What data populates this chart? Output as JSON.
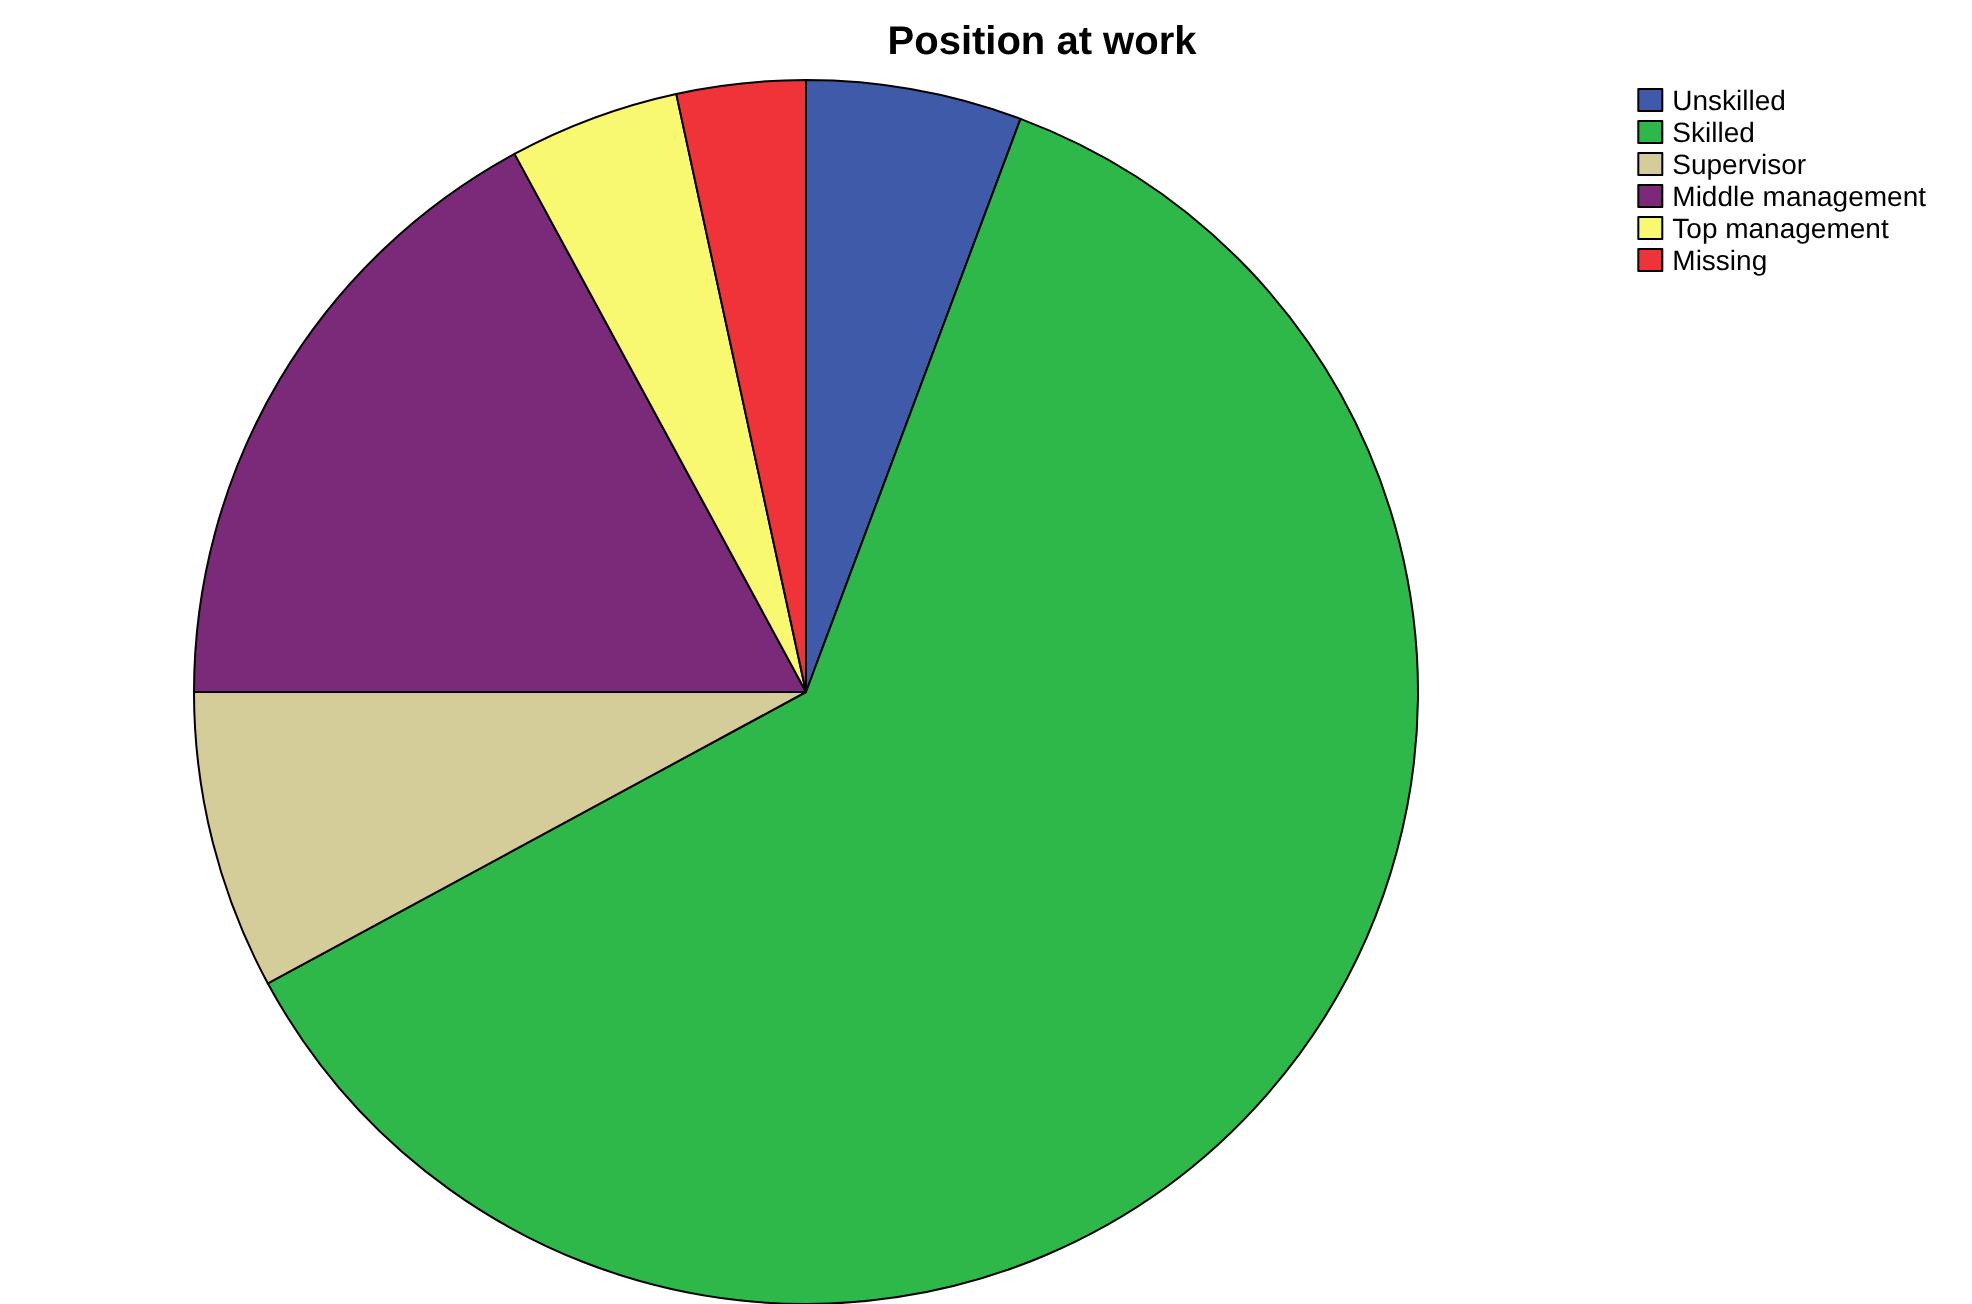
{
  "chart_data": {
    "type": "pie",
    "title": "Position at work",
    "categories": [
      "Unskilled",
      "Skilled",
      "Supervisor",
      "Middle management",
      "Top management",
      "Missing"
    ],
    "values": [
      5.7,
      61.4,
      7.9,
      17.1,
      4.5,
      3.4
    ],
    "colors": [
      "#3f5aa8",
      "#2eb84a",
      "#d4cd9a",
      "#7b2a7a",
      "#f8f871",
      "#ef3338"
    ],
    "legend": "top right"
  }
}
